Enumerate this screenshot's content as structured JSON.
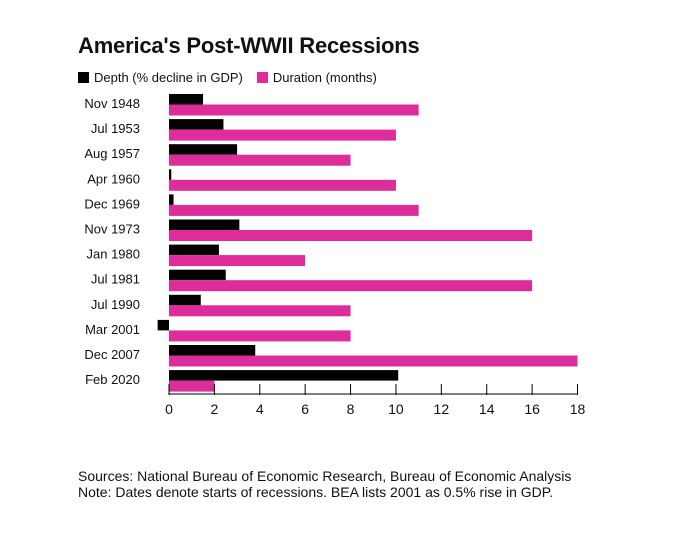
{
  "title": "America's Post-WWII Recessions",
  "legend": [
    {
      "label": "Depth (% decline in GDP)",
      "color": "#000000"
    },
    {
      "label": "Duration (months)",
      "color": "#dd2d9a"
    }
  ],
  "chart_data": {
    "type": "bar",
    "orientation": "horizontal",
    "title": "America's Post-WWII Recessions",
    "categories": [
      "Nov 1948",
      "Jul 1953",
      "Aug 1957",
      "Apr 1960",
      "Dec 1969",
      "Nov 1973",
      "Jan 1980",
      "Jul 1981",
      "Jul 1990",
      "Mar 2001",
      "Dec 2007",
      "Feb 2020"
    ],
    "series": [
      {
        "name": "Depth (% decline in GDP)",
        "color": "#000000",
        "values": [
          1.5,
          2.4,
          3.0,
          0.1,
          0.2,
          3.1,
          2.2,
          2.5,
          1.4,
          -0.5,
          3.8,
          10.1
        ]
      },
      {
        "name": "Duration (months)",
        "color": "#dd2d9a",
        "values": [
          11,
          10,
          8,
          10,
          11,
          16,
          6,
          16,
          8,
          8,
          18,
          2
        ]
      }
    ],
    "xticks": [
      0,
      2,
      4,
      6,
      8,
      10,
      12,
      14,
      16,
      18
    ],
    "xlim": [
      0,
      18
    ],
    "xlabel": "",
    "ylabel": "",
    "grid": false,
    "legend_position": "top-left"
  },
  "footer": {
    "sources": "Sources: National Bureau of Economic Research, Bureau of Economic Analysis",
    "note": "Note: Dates denote starts of recessions. BEA lists 2001 as 0.5% rise in GDP."
  }
}
